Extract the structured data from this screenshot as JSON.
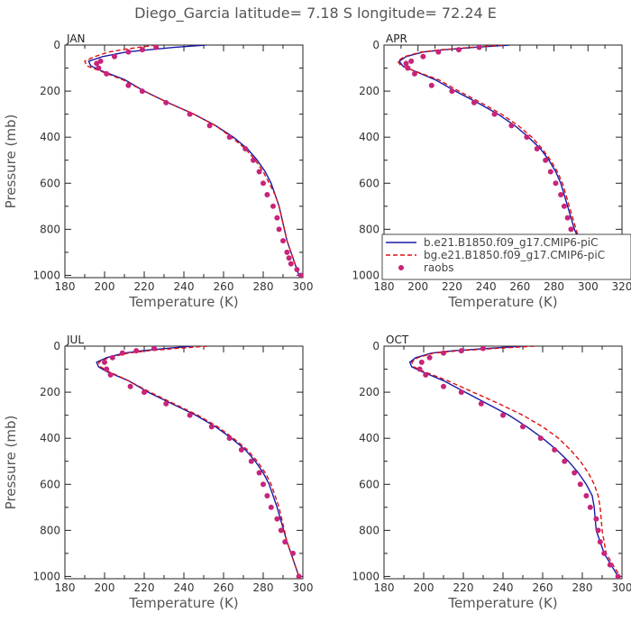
{
  "figure_title": "Diego_Garcia   latitude= 7.18 S longitude= 72.24 E",
  "chart_data": [
    {
      "type": "line",
      "panel": "JAN",
      "xlabel": "Temperature (K)",
      "ylabel": "Pressure (mb)",
      "xlim": [
        180,
        300
      ],
      "ylim": [
        1010,
        0
      ],
      "x_ticks": [
        "180",
        "200",
        "220",
        "240",
        "260",
        "280",
        "300"
      ],
      "y_ticks": [
        "0",
        "200",
        "400",
        "600",
        "800",
        "1000"
      ],
      "series": [
        {
          "color": "#1a1aa6",
          "style": "solid",
          "kind": "line",
          "x": [
            251,
            235,
            223,
            211,
            199,
            192,
            193,
            198,
            210,
            220,
            232,
            245,
            256,
            265,
            272,
            277,
            281,
            284,
            286,
            288,
            292,
            298
          ],
          "y": [
            0,
            10,
            20,
            30,
            50,
            70,
            90,
            110,
            150,
            200,
            250,
            300,
            350,
            400,
            450,
            500,
            550,
            600,
            650,
            700,
            850,
            1000
          ]
        },
        {
          "color": "#dd1111",
          "style": "dashed",
          "kind": "line",
          "x": [
            226,
            217,
            209,
            202,
            195,
            190,
            191,
            197,
            209,
            220,
            232,
            245,
            256,
            264,
            271,
            276,
            280,
            283,
            286,
            288,
            292,
            298
          ],
          "y": [
            0,
            10,
            20,
            30,
            50,
            70,
            90,
            110,
            150,
            200,
            250,
            300,
            350,
            400,
            450,
            500,
            550,
            600,
            650,
            700,
            850,
            1000
          ]
        },
        {
          "color": "#c8247a",
          "style": "none",
          "kind": "points",
          "x": [
            226,
            219,
            212,
            205,
            198,
            196,
            197,
            201,
            212,
            219,
            231,
            243,
            253,
            263,
            271,
            275,
            278,
            280,
            282,
            285,
            287,
            288,
            290,
            292,
            293,
            294,
            297,
            299
          ],
          "y": [
            10,
            20,
            30,
            50,
            70,
            80,
            100,
            125,
            175,
            200,
            250,
            300,
            350,
            400,
            450,
            500,
            550,
            600,
            650,
            700,
            750,
            800,
            850,
            900,
            925,
            950,
            975,
            1000
          ]
        }
      ]
    },
    {
      "type": "line",
      "panel": "APR",
      "xlabel": "Temperature (K)",
      "ylabel": "",
      "xlim": [
        180,
        320
      ],
      "ylim": [
        1010,
        0
      ],
      "x_ticks": [
        "180",
        "200",
        "220",
        "240",
        "260",
        "280",
        "300",
        "320"
      ],
      "y_ticks": [
        "0",
        "200",
        "400",
        "600",
        "800",
        "1000"
      ],
      "legend_position": "lower-right",
      "series": [
        {
          "name": "b.e21.B1850.f09_g17.CMIP6-piC",
          "color": "#1a1aa6",
          "style": "solid",
          "kind": "line",
          "x": [
            254,
            233,
            216,
            203,
            193,
            189,
            191,
            197,
            210,
            222,
            235,
            247,
            257,
            265,
            272,
            277,
            281,
            284,
            286,
            288,
            290,
            292,
            295,
            298,
            300
          ],
          "y": [
            0,
            10,
            20,
            30,
            50,
            70,
            90,
            110,
            150,
            200,
            250,
            300,
            350,
            400,
            450,
            500,
            550,
            600,
            650,
            700,
            750,
            800,
            850,
            930,
            1000
          ]
        },
        {
          "name": "bg.e21.B1850.f09_g17.CMIP6-piC",
          "color": "#dd1111",
          "style": "dashed",
          "kind": "line",
          "x": [
            250,
            231,
            214,
            202,
            192,
            188,
            190,
            197,
            212,
            224,
            237,
            249,
            259,
            267,
            273,
            278,
            282,
            285,
            287,
            289,
            291,
            293,
            295,
            298,
            300
          ],
          "y": [
            0,
            10,
            20,
            30,
            50,
            70,
            90,
            110,
            150,
            200,
            250,
            300,
            350,
            400,
            450,
            500,
            550,
            600,
            650,
            700,
            750,
            800,
            850,
            930,
            1000
          ]
        },
        {
          "name": "raobs",
          "color": "#c8247a",
          "style": "none",
          "kind": "points",
          "x": [
            236,
            224,
            212,
            203,
            196,
            193,
            194,
            198,
            208,
            220,
            233,
            245,
            255,
            264,
            270,
            275,
            278,
            281,
            284,
            286,
            288,
            290,
            292,
            296,
            300
          ],
          "y": [
            10,
            20,
            30,
            50,
            70,
            80,
            100,
            125,
            175,
            200,
            250,
            300,
            350,
            400,
            450,
            500,
            550,
            600,
            650,
            700,
            750,
            800,
            850,
            925,
            1000
          ]
        }
      ]
    },
    {
      "type": "line",
      "panel": "JUL",
      "xlabel": "Temperature (K)",
      "ylabel": "Pressure (mb)",
      "xlim": [
        180,
        300
      ],
      "ylim": [
        1010,
        0
      ],
      "x_ticks": [
        "180",
        "200",
        "220",
        "240",
        "260",
        "280",
        "300"
      ],
      "y_ticks": [
        "0",
        "200",
        "400",
        "600",
        "800",
        "1000"
      ],
      "series": [
        {
          "color": "#1a1aa6",
          "style": "solid",
          "kind": "line",
          "x": [
            244,
            231,
            219,
            210,
            201,
            196,
            197,
            201,
            212,
            222,
            234,
            246,
            256,
            264,
            271,
            276,
            280,
            283,
            285,
            287,
            292,
            298
          ],
          "y": [
            0,
            10,
            20,
            30,
            50,
            70,
            90,
            110,
            150,
            200,
            250,
            300,
            350,
            400,
            450,
            500,
            550,
            600,
            650,
            700,
            850,
            1000
          ]
        },
        {
          "color": "#dd1111",
          "style": "dashed",
          "kind": "line",
          "x": [
            252,
            236,
            222,
            212,
            202,
            197,
            198,
            202,
            212,
            223,
            235,
            247,
            257,
            265,
            272,
            277,
            281,
            284,
            286,
            288,
            292,
            298
          ],
          "y": [
            0,
            10,
            20,
            30,
            50,
            70,
            90,
            110,
            150,
            200,
            250,
            300,
            350,
            400,
            450,
            500,
            550,
            600,
            650,
            700,
            850,
            1000
          ]
        },
        {
          "color": "#c8247a",
          "style": "none",
          "kind": "points",
          "x": [
            225,
            216,
            209,
            204,
            200,
            201,
            203,
            213,
            220,
            231,
            243,
            254,
            263,
            269,
            274,
            278,
            280,
            282,
            284,
            287,
            289,
            291,
            295,
            298
          ],
          "y": [
            10,
            20,
            30,
            50,
            70,
            100,
            125,
            175,
            200,
            250,
            300,
            350,
            400,
            450,
            500,
            550,
            600,
            650,
            700,
            750,
            800,
            850,
            900,
            1000
          ]
        }
      ]
    },
    {
      "type": "line",
      "panel": "OCT",
      "xlabel": "Temperature (K)",
      "ylabel": "",
      "xlim": [
        180,
        300
      ],
      "ylim": [
        1010,
        0
      ],
      "x_ticks": [
        "180",
        "200",
        "220",
        "240",
        "260",
        "280",
        "300"
      ],
      "y_ticks": [
        "0",
        "200",
        "400",
        "600",
        "800",
        "1000"
      ],
      "series": [
        {
          "color": "#1a1aa6",
          "style": "solid",
          "kind": "line",
          "x": [
            250,
            232,
            215,
            204,
            196,
            193,
            194,
            199,
            210,
            221,
            232,
            243,
            252,
            260,
            267,
            273,
            278,
            282,
            285,
            286,
            287,
            291,
            298
          ],
          "y": [
            0,
            10,
            20,
            30,
            50,
            70,
            90,
            110,
            150,
            200,
            250,
            300,
            350,
            400,
            450,
            500,
            550,
            600,
            650,
            700,
            800,
            900,
            1000
          ]
        },
        {
          "color": "#dd1111",
          "style": "dashed",
          "kind": "line",
          "x": [
            256,
            236,
            218,
            205,
            197,
            194,
            195,
            200,
            212,
            225,
            238,
            250,
            260,
            268,
            274,
            279,
            283,
            286,
            288,
            289,
            290,
            292,
            299
          ],
          "y": [
            0,
            10,
            20,
            30,
            50,
            70,
            90,
            110,
            150,
            200,
            250,
            300,
            350,
            400,
            450,
            500,
            550,
            600,
            650,
            700,
            800,
            900,
            1000
          ]
        },
        {
          "color": "#c8247a",
          "style": "none",
          "kind": "points",
          "x": [
            230,
            219,
            210,
            203,
            199,
            198,
            201,
            210,
            219,
            229,
            240,
            250,
            259,
            266,
            271,
            276,
            279,
            282,
            284,
            287,
            288,
            289,
            291,
            294,
            298
          ],
          "y": [
            10,
            20,
            30,
            50,
            70,
            100,
            125,
            175,
            200,
            250,
            300,
            350,
            400,
            450,
            500,
            550,
            600,
            650,
            700,
            750,
            800,
            850,
            900,
            950,
            1000
          ]
        }
      ]
    }
  ]
}
